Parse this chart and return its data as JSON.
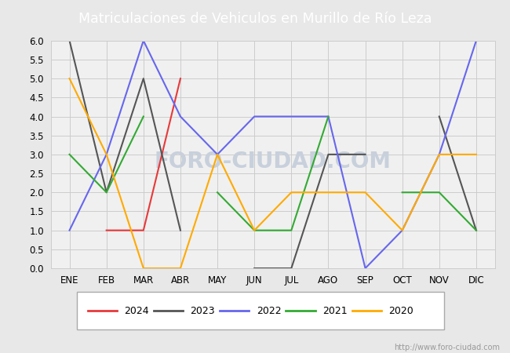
{
  "title": "Matriculaciones de Vehiculos en Murillo de Río Leza",
  "title_bg_color": "#4a7cc7",
  "title_text_color": "#ffffff",
  "months": [
    "ENE",
    "FEB",
    "MAR",
    "ABR",
    "MAY",
    "JUN",
    "JUL",
    "AGO",
    "SEP",
    "OCT",
    "NOV",
    "DIC"
  ],
  "series": {
    "2024": {
      "color": "#e8393a",
      "data": [
        null,
        1,
        1,
        5,
        null,
        null,
        null,
        null,
        null,
        null,
        null,
        null
      ]
    },
    "2023": {
      "color": "#555555",
      "data": [
        6,
        2,
        5,
        1,
        null,
        0,
        0,
        3,
        3,
        null,
        4,
        1
      ]
    },
    "2022": {
      "color": "#6666ee",
      "data": [
        1,
        3,
        6,
        4,
        3,
        4,
        4,
        4,
        0,
        1,
        3,
        6
      ]
    },
    "2021": {
      "color": "#33aa33",
      "data": [
        3,
        2,
        4,
        null,
        2,
        1,
        1,
        4,
        null,
        2,
        2,
        1
      ]
    },
    "2020": {
      "color": "#ffaa00",
      "data": [
        5,
        3,
        0,
        0,
        3,
        1,
        2,
        2,
        2,
        1,
        3,
        3
      ]
    }
  },
  "ylim": [
    0,
    6.0
  ],
  "yticks": [
    0.0,
    0.5,
    1.0,
    1.5,
    2.0,
    2.5,
    3.0,
    3.5,
    4.0,
    4.5,
    5.0,
    5.5,
    6.0
  ],
  "grid_color": "#cccccc",
  "bg_color": "#e8e8e8",
  "plot_bg_color": "#f0f0f0",
  "watermark_chart": "FORO-CIUDAD.COM",
  "watermark_color": "#c8d0dc",
  "watermark_url": "http://www.foro-ciudad.com",
  "legend_order": [
    "2024",
    "2023",
    "2022",
    "2021",
    "2020"
  ]
}
